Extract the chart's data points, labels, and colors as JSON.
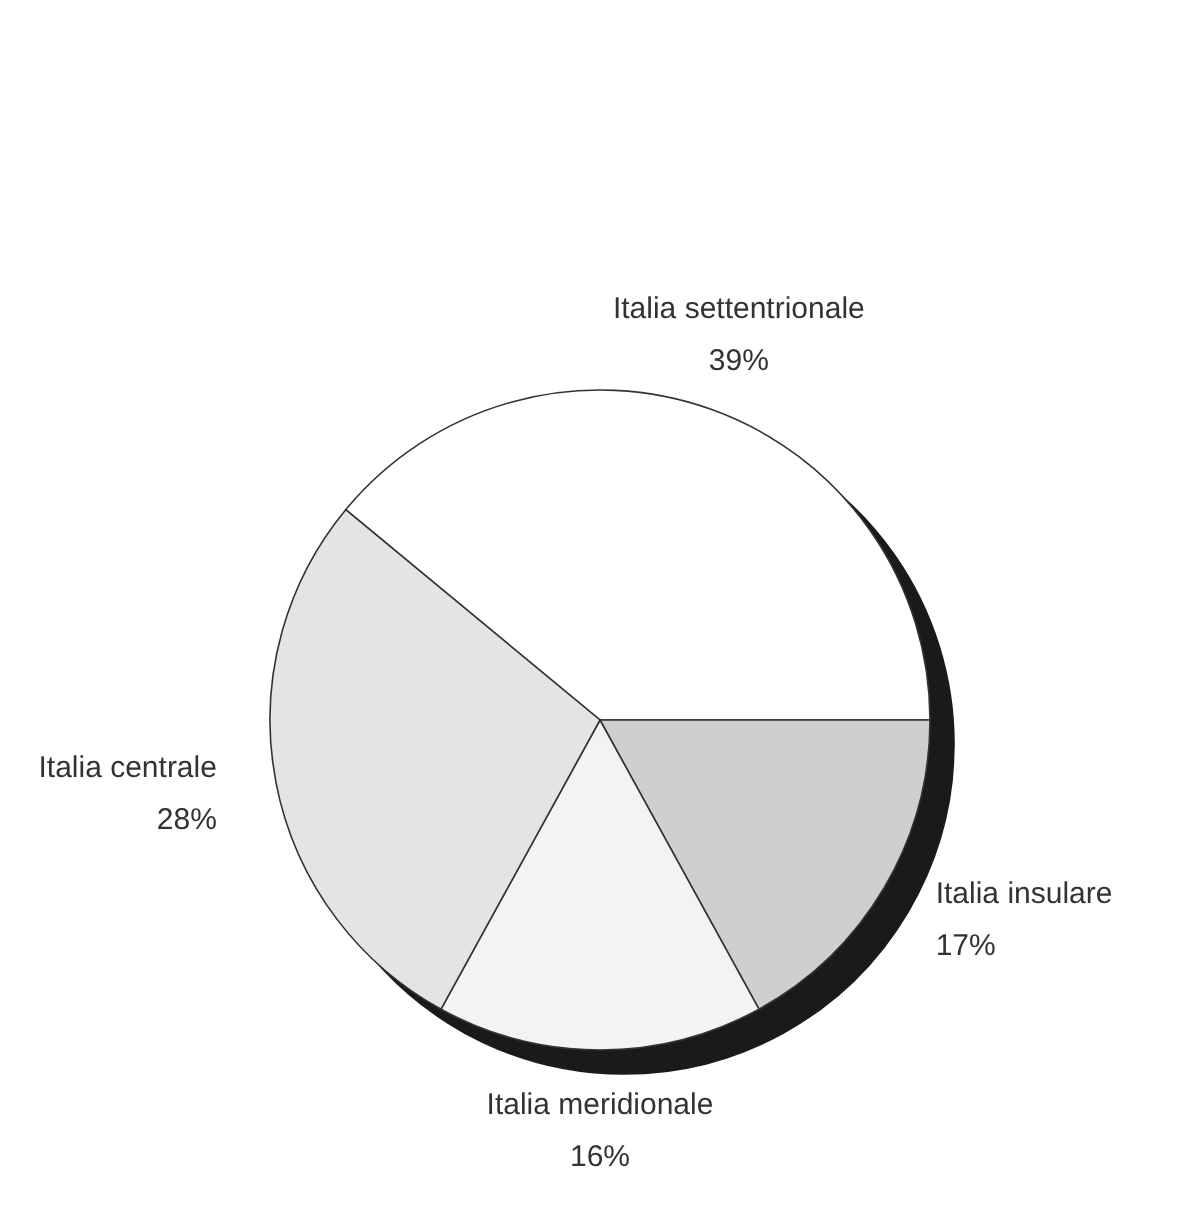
{
  "chart_data": {
    "type": "pie",
    "categories": [
      "Italia settentrionale",
      "Italia insulare",
      "Italia meridionale",
      "Italia centrale"
    ],
    "values": [
      39,
      17,
      16,
      28
    ],
    "colors": [
      "#ffffff",
      "#cfcfcf",
      "#f3f3f3",
      "#e4e4e4"
    ],
    "value_labels": [
      "39%",
      "17%",
      "16%",
      "28%"
    ]
  }
}
